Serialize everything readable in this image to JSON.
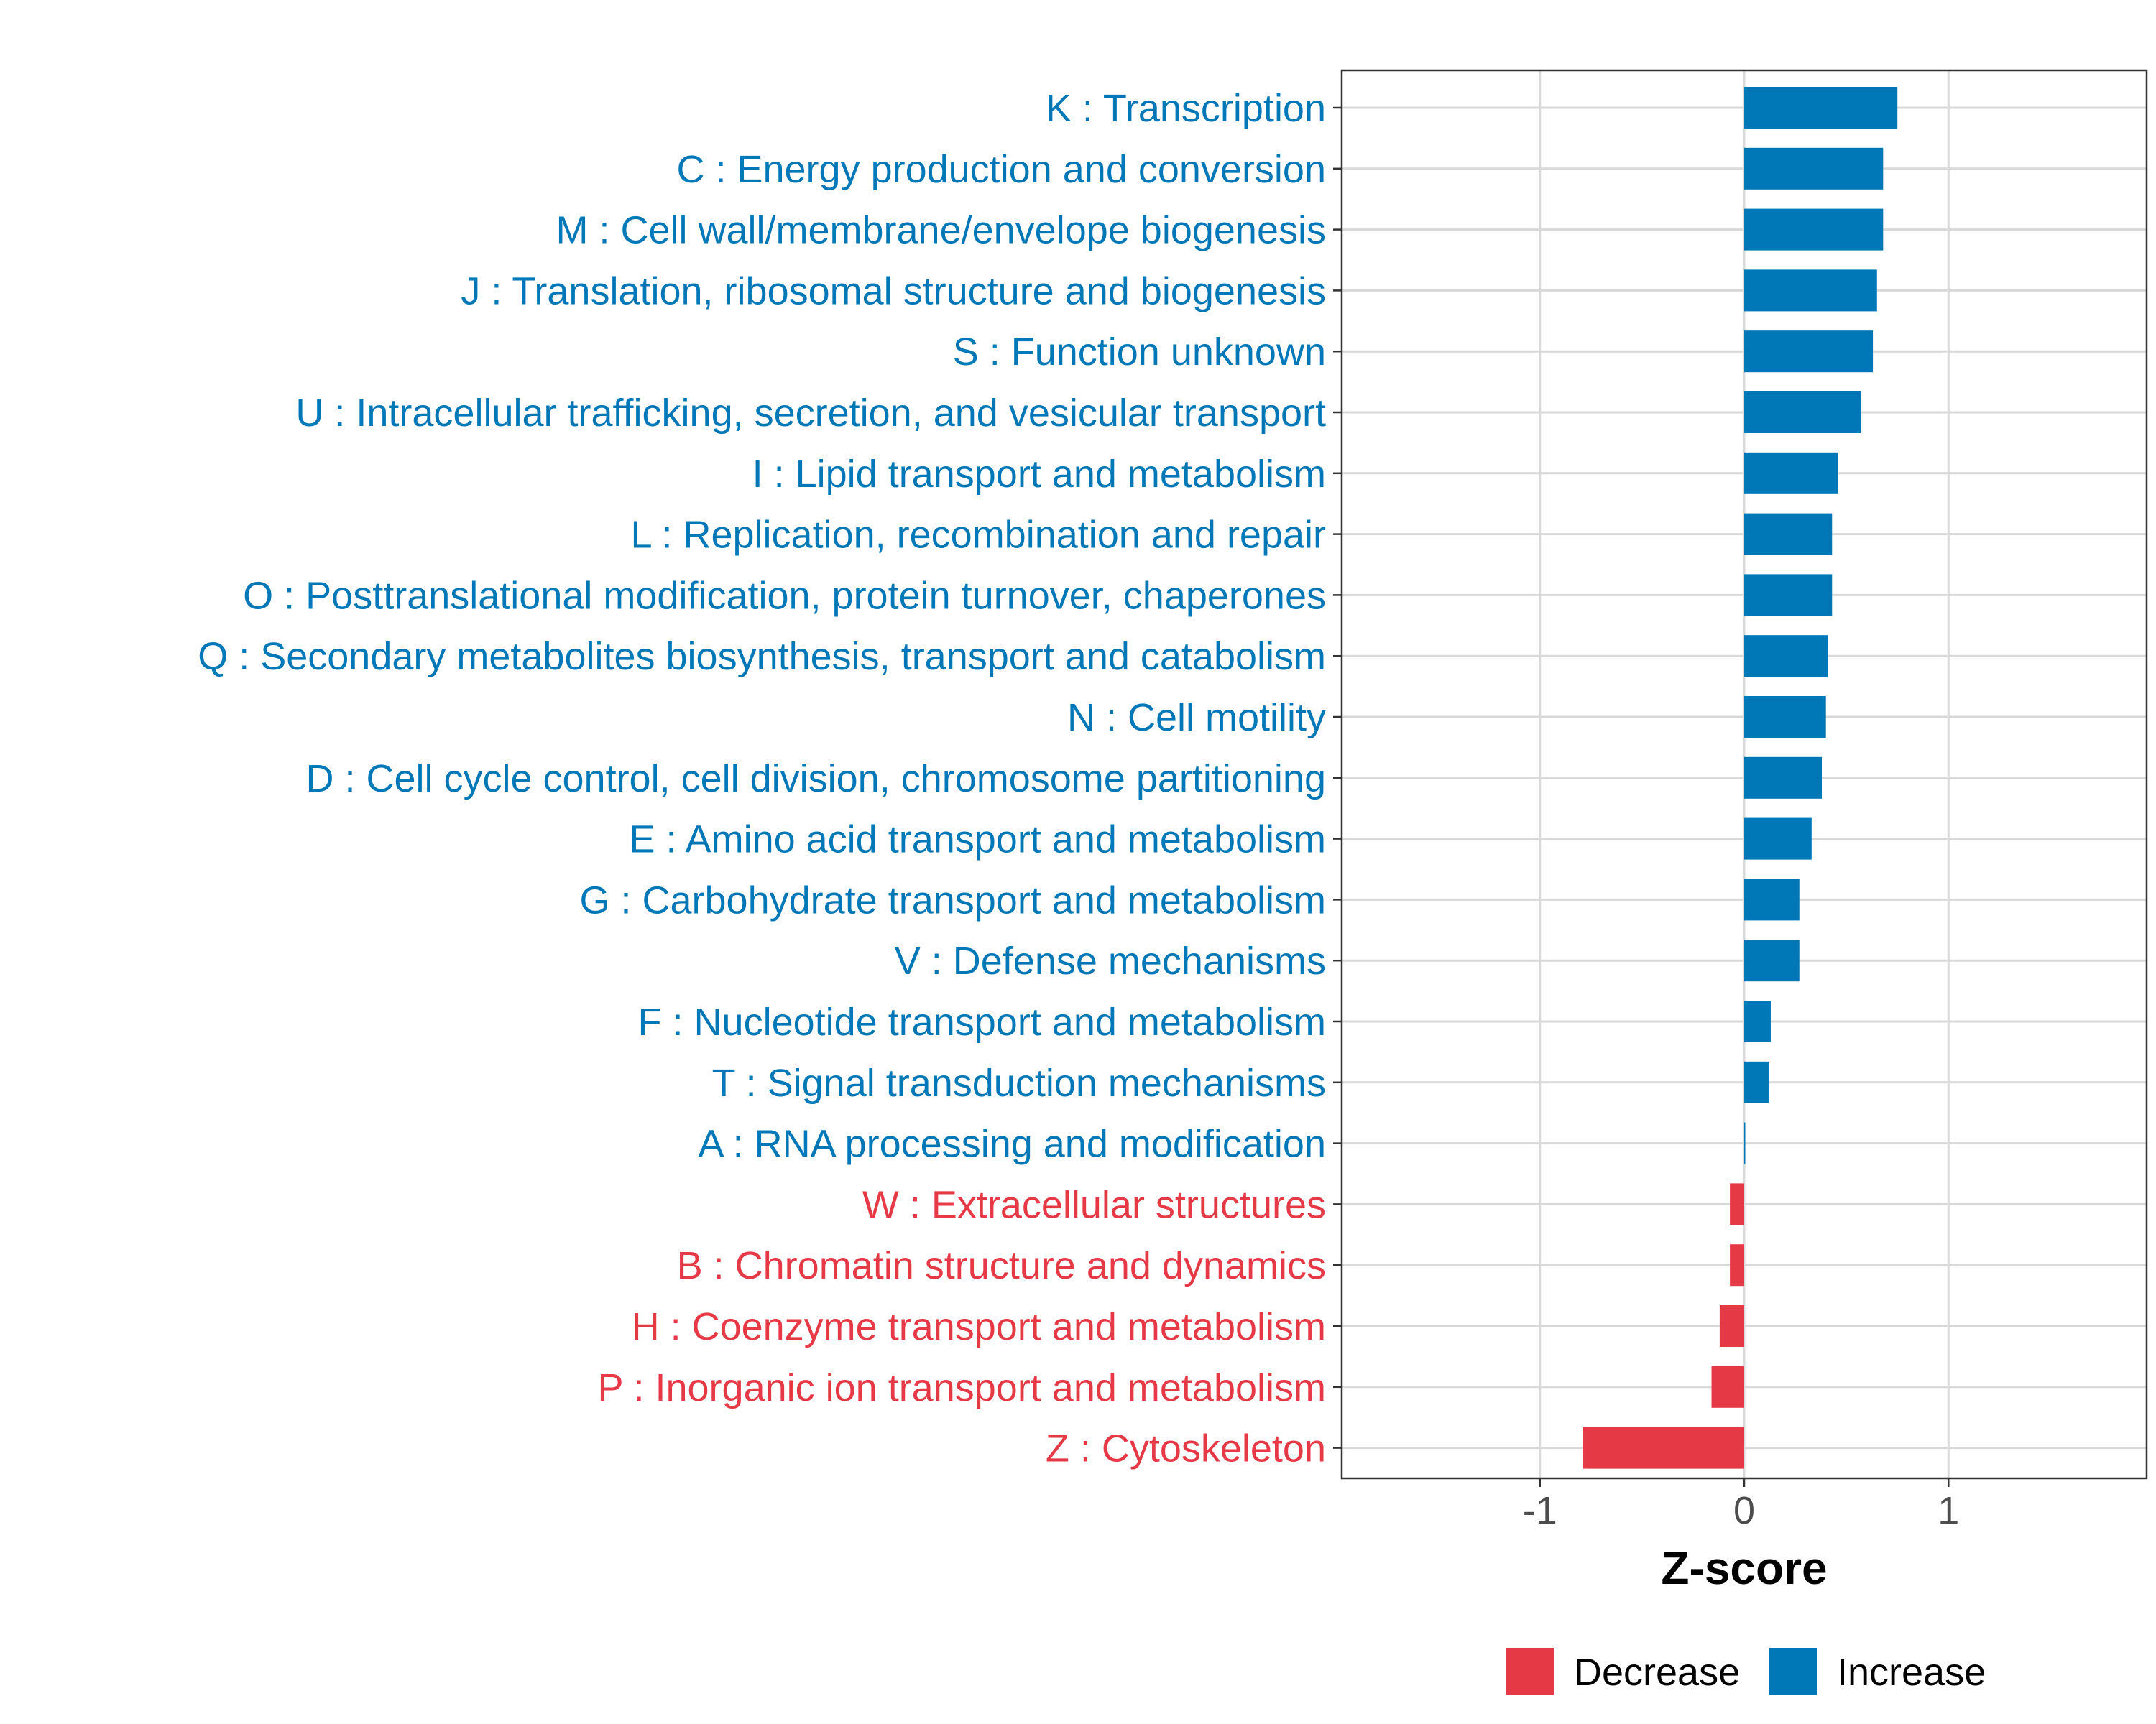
{
  "chart_data": {
    "type": "bar",
    "orientation": "horizontal",
    "title": "",
    "xlabel": "Z-score",
    "ylabel": "",
    "xlim": [
      -1.97,
      1.97
    ],
    "xticks": [
      {
        "value": -1,
        "label": "-1"
      },
      {
        "value": 0,
        "label": "0"
      },
      {
        "value": 1,
        "label": "1"
      }
    ],
    "grid": true,
    "legend_position": "bottom",
    "colors": {
      "Decrease": "#E63946",
      "Increase": "#0077B6"
    },
    "categories": [
      "K : Transcription",
      "C : Energy production and conversion",
      "M : Cell wall/membrane/envelope biogenesis",
      "J : Translation, ribosomal structure and biogenesis",
      "S : Function unknown",
      "U : Intracellular trafficking, secretion, and vesicular transport",
      "I : Lipid transport and metabolism",
      "L : Replication, recombination and repair",
      "O : Posttranslational modification, protein turnover, chaperones",
      "Q : Secondary metabolites biosynthesis, transport and catabolism",
      "N : Cell motility",
      "D : Cell cycle control, cell division, chromosome partitioning",
      "E : Amino acid transport and metabolism",
      "G : Carbohydrate transport and metabolism",
      "V : Defense mechanisms",
      "F : Nucleotide transport and metabolism",
      "T : Signal transduction mechanisms",
      "A : RNA processing and modification",
      "W : Extracellular structures",
      "B : Chromatin structure and dynamics",
      "H : Coenzyme transport and metabolism",
      "P : Inorganic ion transport and metabolism",
      "Z : Cytoskeleton"
    ],
    "values": [
      0.75,
      0.68,
      0.68,
      0.65,
      0.63,
      0.57,
      0.46,
      0.43,
      0.43,
      0.41,
      0.4,
      0.38,
      0.33,
      0.27,
      0.27,
      0.13,
      0.12,
      0.005,
      -0.07,
      -0.07,
      -0.12,
      -0.16,
      -0.79
    ],
    "groups": [
      "Increase",
      "Increase",
      "Increase",
      "Increase",
      "Increase",
      "Increase",
      "Increase",
      "Increase",
      "Increase",
      "Increase",
      "Increase",
      "Increase",
      "Increase",
      "Increase",
      "Increase",
      "Increase",
      "Increase",
      "Increase",
      "Decrease",
      "Decrease",
      "Decrease",
      "Decrease",
      "Decrease"
    ],
    "legend": [
      {
        "label": "Decrease",
        "color": "#E63946"
      },
      {
        "label": "Increase",
        "color": "#0077B6"
      }
    ]
  }
}
